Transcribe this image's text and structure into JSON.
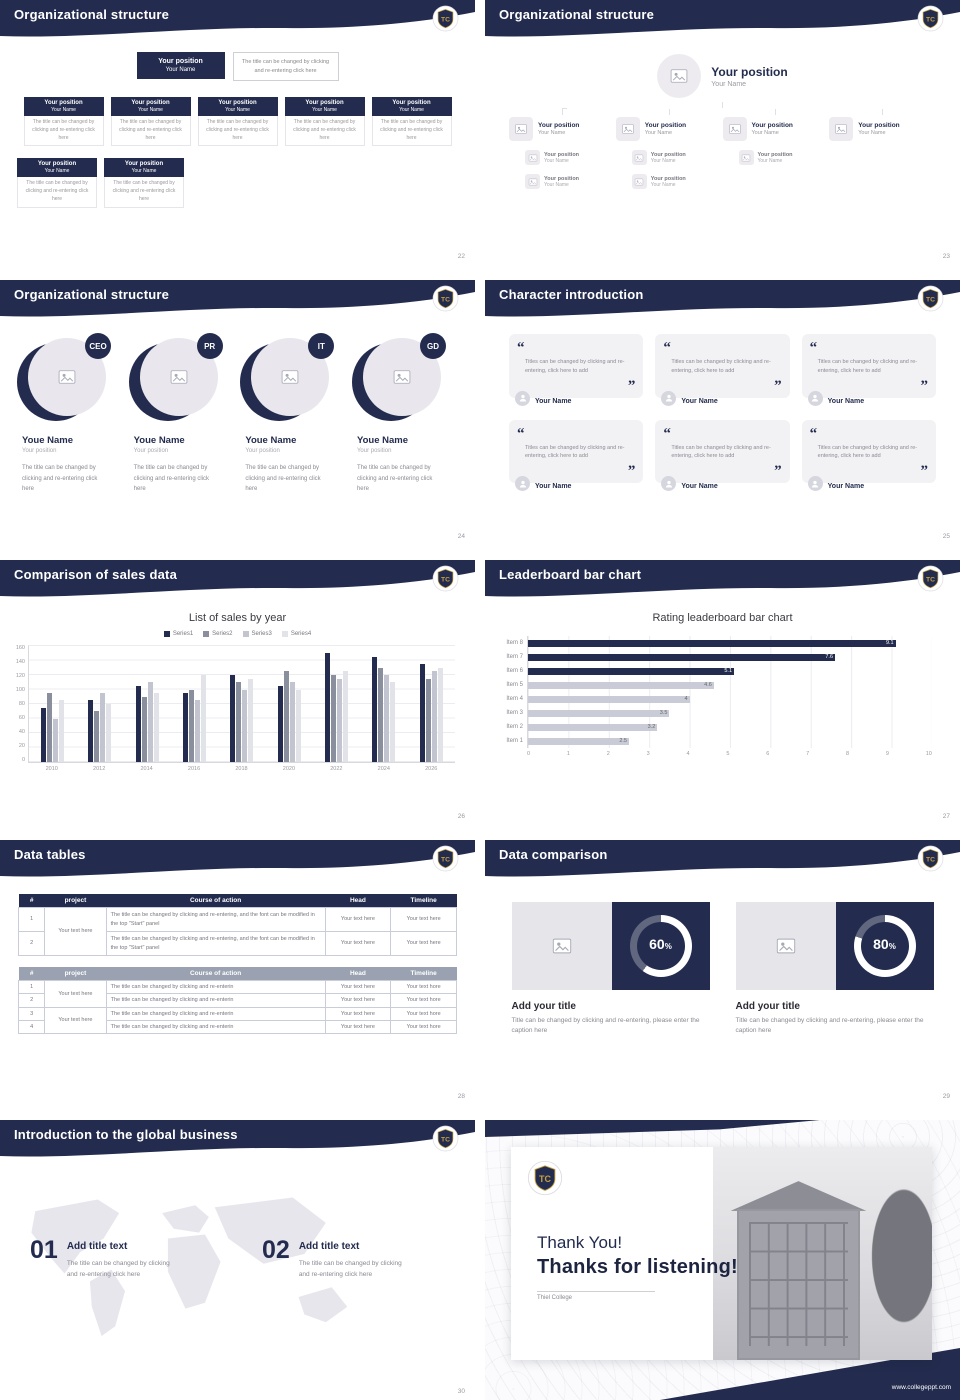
{
  "theme": {
    "navy": "#232c4e",
    "gold": "#c9a13b",
    "mid_gray": "#9aa2b1",
    "light_gray": "#ececf0"
  },
  "logo_text": "TC",
  "slides": {
    "s22": {
      "title": "Organizational structure",
      "page": "22",
      "position": "Your position",
      "name": "Your Name",
      "note": "The title can be changed by clicking and re-entering click here",
      "card_body": "The title can be changed by clicking and re-entering click here"
    },
    "s23": {
      "title": "Organizational structure",
      "page": "23",
      "position": "Your position",
      "name": "Your Name"
    },
    "s24": {
      "title": "Organizational structure",
      "page": "24",
      "roles": [
        "CEO",
        "PR",
        "IT",
        "GD"
      ],
      "name": "Youe Name",
      "position": "Your position",
      "body": "The title can be changed by clicking and re-entering click here"
    },
    "s25": {
      "title": "Character introduction",
      "page": "25",
      "quote": "Titles can be changed by clicking and re-entering, click here to add",
      "name": "Your Name"
    },
    "s26": {
      "title": "Comparison of sales data",
      "page": "26"
    },
    "s27": {
      "title": "Leaderboard bar chart",
      "page": "27"
    },
    "s28": {
      "title": "Data tables",
      "page": "28",
      "table1": {
        "headers": [
          "#",
          "project",
          "Course of action",
          "Head",
          "Timeline"
        ],
        "rows": [
          "1",
          "2"
        ],
        "project": "Your text here",
        "action": "The title can be changed by clicking and re-entering, and the font can be modified in the top \"Start\" panel",
        "head": "Your text here",
        "timeline": "Your text here"
      },
      "table2": {
        "headers": [
          "#",
          "project",
          "Course of action",
          "Head",
          "Timeline"
        ],
        "rows": [
          "1",
          "2",
          "3",
          "4"
        ],
        "project": "Your text here",
        "action": "The title can be changed by clicking and re-enterin",
        "head": "Your text here",
        "timeline": "Your text hore"
      }
    },
    "s29": {
      "title": "Data comparison",
      "page": "29",
      "percent_suffix": "%",
      "items": [
        {
          "percent": "60",
          "heading": "Add your title",
          "caption": "Title can be changed by clicking and re-entering, please enter the caption here"
        },
        {
          "percent": "80",
          "heading": "Add your title",
          "caption": "Title can be changed by clicking and re-entering, please enter the caption here"
        }
      ]
    },
    "s30": {
      "title": "Introduction to the global business",
      "page": "30",
      "items": [
        {
          "num": "01",
          "heading": "Add title text",
          "body": "The title can be changed by clicking and re-entering click here"
        },
        {
          "num": "02",
          "heading": "Add title text",
          "body": "The title can be changed by clicking and re-entering click here"
        }
      ]
    },
    "s31": {
      "line1": "Thank You!",
      "line2": "Thanks for listening!",
      "college": "Thiel College",
      "url": "www.collegeppt.com"
    }
  },
  "chart_data": [
    {
      "id": "sales-by-year",
      "type": "bar",
      "title": "List of sales by year",
      "categories": [
        "2010",
        "2012",
        "2014",
        "2016",
        "2018",
        "2020",
        "2022",
        "2024",
        "2026"
      ],
      "series": [
        {
          "name": "Series1",
          "color": "#232c4e",
          "values": [
            75,
            85,
            105,
            95,
            120,
            105,
            150,
            145,
            135
          ]
        },
        {
          "name": "Series2",
          "color": "#8a8f9e",
          "values": [
            95,
            70,
            90,
            100,
            110,
            125,
            120,
            130,
            115
          ]
        },
        {
          "name": "Series3",
          "color": "#c2c5cf",
          "values": [
            60,
            95,
            110,
            85,
            100,
            110,
            115,
            120,
            125
          ]
        },
        {
          "name": "Series4",
          "color": "#e2e3e9",
          "values": [
            85,
            80,
            95,
            120,
            115,
            100,
            125,
            110,
            130
          ]
        }
      ],
      "ylim": [
        0,
        160
      ],
      "yticks": [
        0,
        20,
        40,
        60,
        80,
        100,
        120,
        140,
        160
      ],
      "legend_position": "top",
      "grid": true
    },
    {
      "id": "rating-leaderboard",
      "type": "bar-horizontal",
      "title": "Rating leaderboard bar chart",
      "categories": [
        "Item 8",
        "Item 7",
        "Item 6",
        "Item 5",
        "Item 4",
        "Item 3",
        "Item 2",
        "Item 1"
      ],
      "values": [
        9.1,
        7.6,
        5.1,
        4.6,
        4,
        3.5,
        3.2,
        2.5
      ],
      "colors": [
        "#232c4e",
        "#232c4e",
        "#232c4e",
        "#c9ccd6",
        "#c9ccd6",
        "#c9ccd6",
        "#c9ccd6",
        "#c9ccd6"
      ],
      "xlim": [
        0,
        10
      ],
      "xticks": [
        0,
        1,
        2,
        3,
        4,
        5,
        6,
        7,
        8,
        9,
        10
      ],
      "grid": true
    }
  ]
}
